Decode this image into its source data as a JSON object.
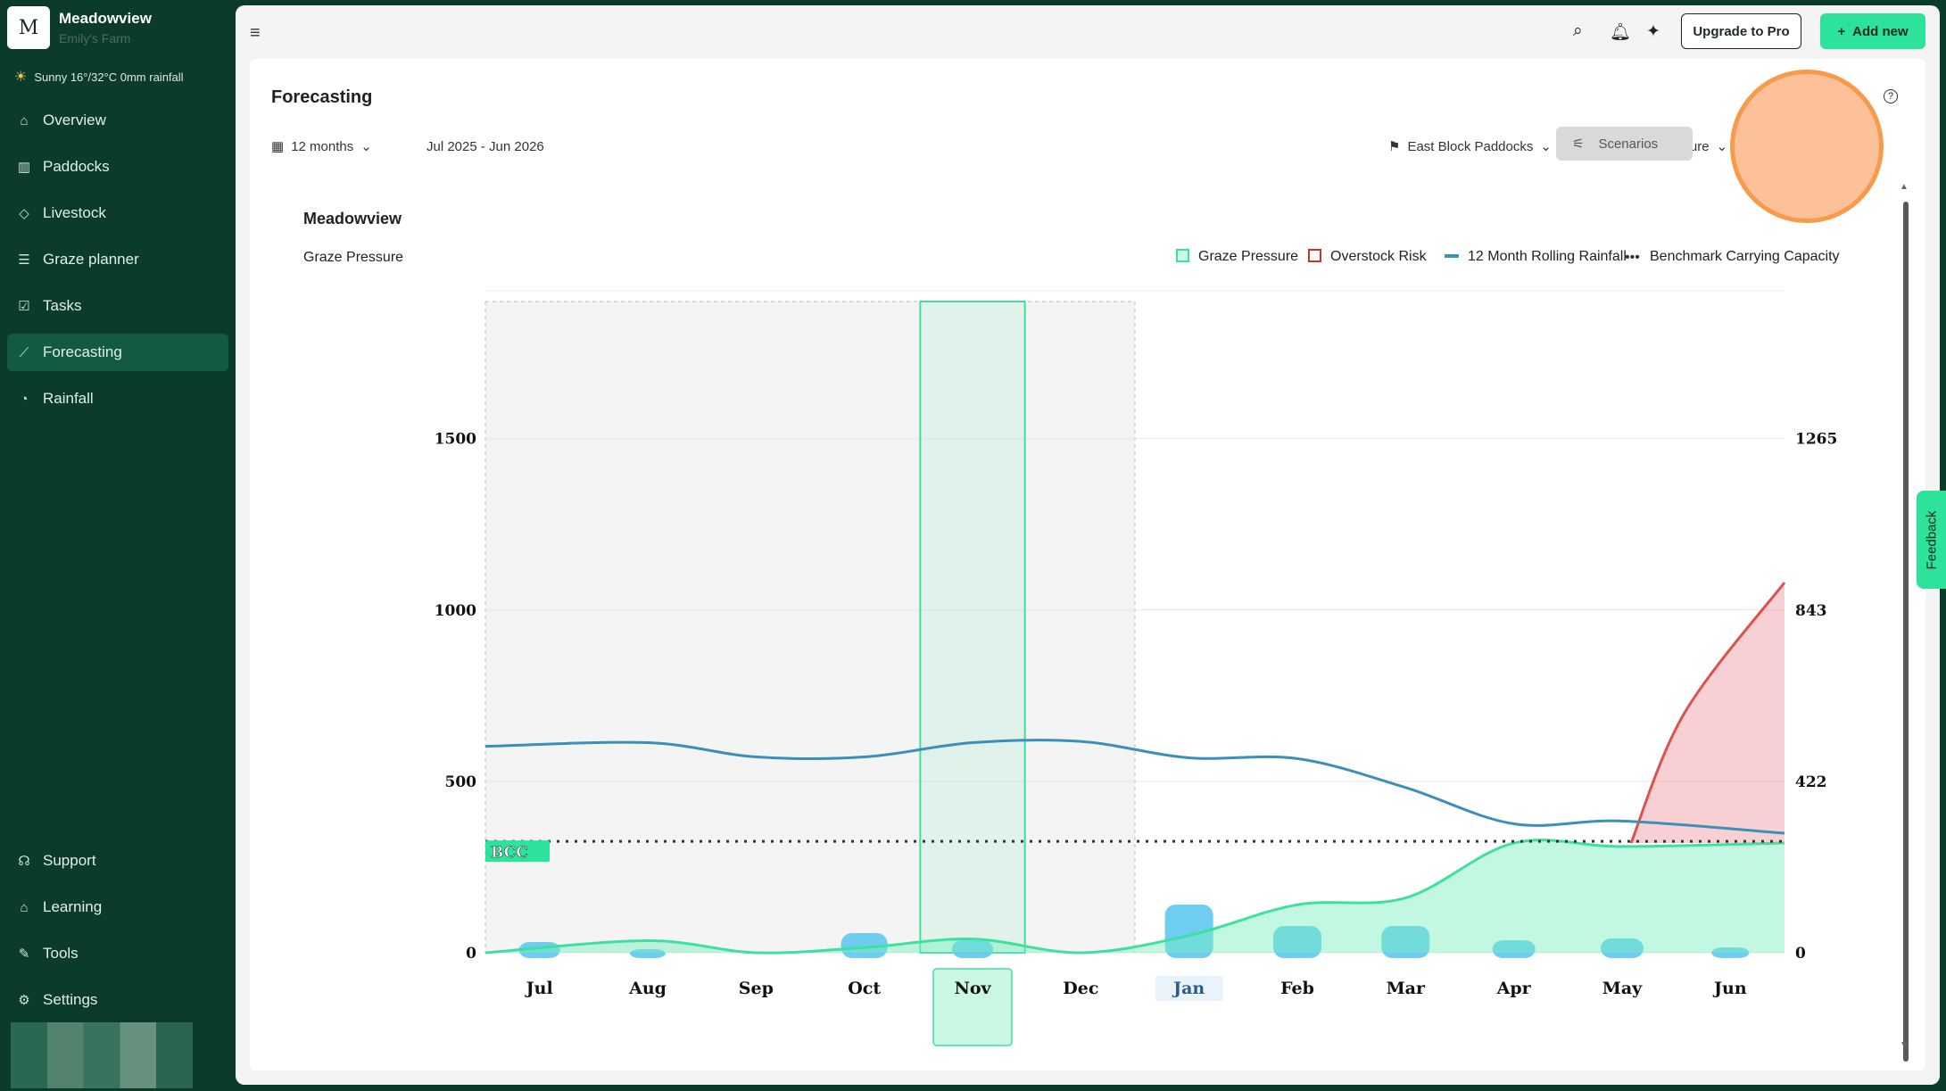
{
  "brand": {
    "initial": "M",
    "name": "Meadowview",
    "sub": "Emily's Farm"
  },
  "weather": "Sunny 16°/32°C 0mm rainfall",
  "nav": [
    {
      "label": "Overview",
      "icon": "home-icon"
    },
    {
      "label": "Paddocks",
      "icon": "paddocks-icon"
    },
    {
      "label": "Livestock",
      "icon": "tag-icon"
    },
    {
      "label": "Graze planner",
      "icon": "planner-icon"
    },
    {
      "label": "Tasks",
      "icon": "tasks-icon"
    },
    {
      "label": "Forecasting",
      "icon": "chart-icon"
    },
    {
      "label": "Rainfall",
      "icon": "rainfall-icon"
    }
  ],
  "nav_bottom": [
    {
      "label": "Support",
      "icon": "headset-icon"
    },
    {
      "label": "Learning",
      "icon": "graduation-icon"
    },
    {
      "label": "Tools",
      "icon": "wrench-icon"
    },
    {
      "label": "Settings",
      "icon": "gear-icon"
    }
  ],
  "topbar": {
    "upgrade": "Upgrade to Pro",
    "add_new": "Add new"
  },
  "page": {
    "title": "Forecasting",
    "period": "12 months",
    "range": "Jul 2025 - Jun 2026",
    "paddock": "East Block Paddocks",
    "metric": "Graze Pressure",
    "scenarios": "Scenarios"
  },
  "feedback": "Feedback",
  "chart_data": {
    "type": "area",
    "title": "Meadowview",
    "subtitle": "Graze Pressure",
    "categories": [
      "Jul",
      "Aug",
      "Sep",
      "Oct",
      "Nov",
      "Dec",
      "Jan",
      "Feb",
      "Mar",
      "Apr",
      "May",
      "Jun"
    ],
    "legend": [
      "Graze Pressure",
      "Overstock Risk",
      "12 Month Rolling Rainfall",
      "Benchmark Carrying Capacity"
    ],
    "y_left_ticks": [
      "0",
      "500",
      "1000",
      "1500"
    ],
    "y_right_ticks": [
      "0",
      "422",
      "843",
      "1265"
    ],
    "ylim_left": [
      0,
      1900
    ],
    "ylim_right": [
      0,
      1600
    ],
    "series": [
      {
        "name": "Graze Pressure",
        "values": [
          0,
          35,
          0,
          15,
          40,
          0,
          50,
          140,
          160,
          320,
          310,
          320
        ],
        "color": "#3ee0a0"
      },
      {
        "name": "Overstock Risk",
        "values": [
          null,
          null,
          null,
          null,
          null,
          null,
          null,
          null,
          null,
          null,
          320,
          1080
        ],
        "color": "#d9534f"
      },
      {
        "name": "12 Month Rolling Rainfall",
        "values": [
          506,
          515,
          480,
          480,
          515,
          518,
          478,
          476,
          405,
          316,
          323,
          293
        ],
        "color": "#3b8fb8"
      },
      {
        "name": "Benchmark Carrying Capacity",
        "values": [
          325,
          325,
          325,
          325,
          325,
          325,
          325,
          325,
          325,
          325,
          325,
          325
        ],
        "color": "#333333"
      }
    ],
    "rainfall_bars": [
      30,
      10,
      0,
      55,
      35,
      0,
      135,
      75,
      75,
      35,
      40,
      15
    ],
    "bcc_label": "BCC",
    "selected_month": "Nov",
    "current_month": "Jan"
  }
}
